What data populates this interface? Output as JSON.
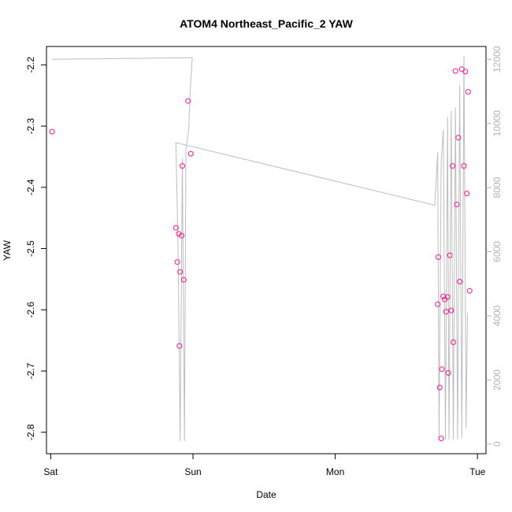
{
  "chart_data": {
    "type": "scatter",
    "title": "ATOM4 Northeast_Pacific_2 YAW",
    "xlabel": "Date",
    "ylabel": "YAW",
    "x_ticks": [
      {
        "label": "Sat",
        "value": 0
      },
      {
        "label": "Sun",
        "value": 1
      },
      {
        "label": "Mon",
        "value": 2
      },
      {
        "label": "Tue",
        "value": 3
      }
    ],
    "xlim": [
      -0.03,
      3.06
    ],
    "ylim": [
      -2.835,
      -2.17
    ],
    "y_ticks": [
      -2.2,
      -2.3,
      -2.4,
      -2.5,
      -2.6,
      -2.7,
      -2.8
    ],
    "y2lim": [
      -300,
      12400
    ],
    "y2_ticks": [
      0,
      2000,
      4000,
      6000,
      8000,
      10000,
      12000
    ],
    "grid": false,
    "colors": {
      "points": "#ff1493",
      "line": "#bebebe",
      "right_axis": "#b3b3b3"
    },
    "series": [
      {
        "marker": "open-circle",
        "axis": "left",
        "points": [
          {
            "x": 0.01,
            "y": -2.309
          },
          {
            "x": 0.88,
            "y": -2.466
          },
          {
            "x": 0.89,
            "y": -2.522
          },
          {
            "x": 0.9,
            "y": -2.476
          },
          {
            "x": 0.905,
            "y": -2.659
          },
          {
            "x": 0.91,
            "y": -2.538
          },
          {
            "x": 0.92,
            "y": -2.479
          },
          {
            "x": 0.925,
            "y": -2.365
          },
          {
            "x": 0.935,
            "y": -2.551
          },
          {
            "x": 0.965,
            "y": -2.259
          },
          {
            "x": 0.985,
            "y": -2.345
          },
          {
            "x": 2.72,
            "y": -2.591
          },
          {
            "x": 2.725,
            "y": -2.514
          },
          {
            "x": 2.735,
            "y": -2.727
          },
          {
            "x": 2.745,
            "y": -2.81
          },
          {
            "x": 2.75,
            "y": -2.697
          },
          {
            "x": 2.76,
            "y": -2.578
          },
          {
            "x": 2.77,
            "y": -2.583
          },
          {
            "x": 2.78,
            "y": -2.603
          },
          {
            "x": 2.79,
            "y": -2.579
          },
          {
            "x": 2.795,
            "y": -2.703
          },
          {
            "x": 2.805,
            "y": -2.511
          },
          {
            "x": 2.815,
            "y": -2.601
          },
          {
            "x": 2.825,
            "y": -2.365
          },
          {
            "x": 2.83,
            "y": -2.653
          },
          {
            "x": 2.845,
            "y": -2.21
          },
          {
            "x": 2.855,
            "y": -2.428
          },
          {
            "x": 2.865,
            "y": -2.319
          },
          {
            "x": 2.875,
            "y": -2.554
          },
          {
            "x": 2.89,
            "y": -2.207
          },
          {
            "x": 2.905,
            "y": -2.365
          },
          {
            "x": 2.915,
            "y": -2.211
          },
          {
            "x": 2.925,
            "y": -2.41
          },
          {
            "x": 2.935,
            "y": -2.244
          },
          {
            "x": 2.945,
            "y": -2.569
          }
        ]
      },
      {
        "marker": "line",
        "axis": "right",
        "points": [
          {
            "x": 0.01,
            "y": 12000
          },
          {
            "x": 0.995,
            "y": 12050
          },
          {
            "x": 0.98,
            "y": 11000
          },
          {
            "x": 0.97,
            "y": 9800
          },
          {
            "x": 0.95,
            "y": 9200
          },
          {
            "x": 0.94,
            "y": 100
          },
          {
            "x": 0.925,
            "y": 8900
          },
          {
            "x": 0.91,
            "y": 100
          },
          {
            "x": 0.895,
            "y": 6200
          },
          {
            "x": 0.88,
            "y": 9400
          },
          {
            "x": 2.7,
            "y": 7450
          },
          {
            "x": 2.72,
            "y": 9100
          },
          {
            "x": 2.73,
            "y": 150
          },
          {
            "x": 2.745,
            "y": 8800
          },
          {
            "x": 2.76,
            "y": 9800
          },
          {
            "x": 2.775,
            "y": 150
          },
          {
            "x": 2.79,
            "y": 10200
          },
          {
            "x": 2.8,
            "y": 150
          },
          {
            "x": 2.815,
            "y": 10400
          },
          {
            "x": 2.83,
            "y": 150
          },
          {
            "x": 2.845,
            "y": 10500
          },
          {
            "x": 2.86,
            "y": 150
          },
          {
            "x": 2.875,
            "y": 11200
          },
          {
            "x": 2.89,
            "y": 200
          },
          {
            "x": 2.905,
            "y": 12100
          },
          {
            "x": 2.92,
            "y": 500
          },
          {
            "x": 2.93,
            "y": 4100
          }
        ]
      }
    ]
  }
}
